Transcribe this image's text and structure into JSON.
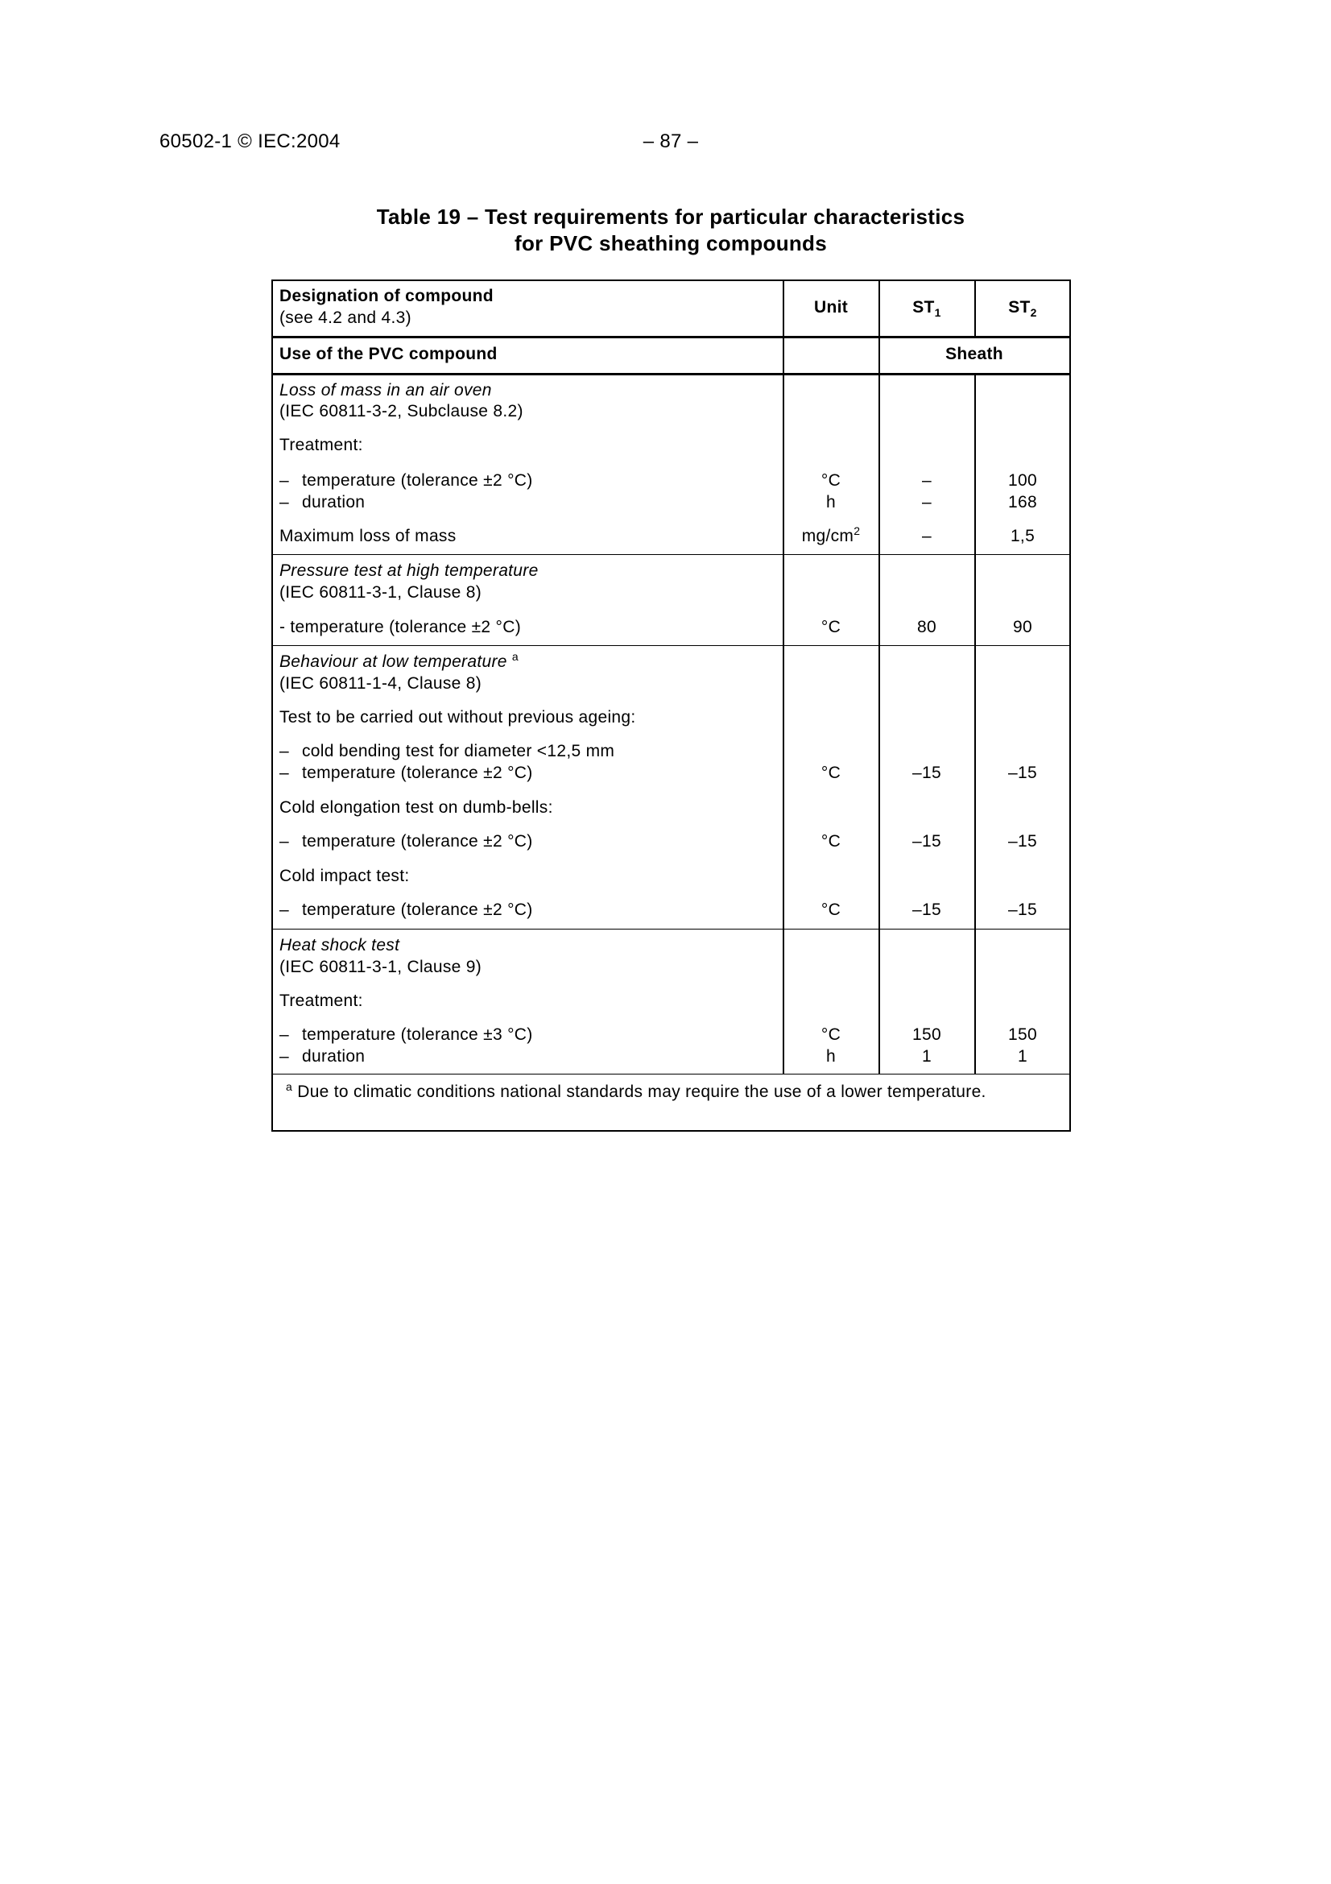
{
  "header": {
    "doc_id": "60502-1 © IEC:2004",
    "page": "– 87 –"
  },
  "title": {
    "line1": "Table 19 – Test requirements for particular characteristics",
    "line2": "for PVC  sheathing compounds"
  },
  "table": {
    "head": {
      "designation": "Designation of compound",
      "designation_note": "(see 4.2 and 4.3)",
      "unit": "Unit",
      "st1": "ST",
      "st1_sub": "1",
      "st2": "ST",
      "st2_sub": "2"
    },
    "use_row": {
      "label": "Use of the PVC compound",
      "value": "Sheath"
    },
    "s1": {
      "title": "Loss of mass in an air oven",
      "ref": "(IEC 60811-3-2, Subclause 8.2)",
      "treatment": "Treatment:",
      "temp": "temperature (tolerance ±2 °C)",
      "duration": "duration",
      "max": "Maximum loss of mass",
      "u_temp": "°C",
      "u_dur": "h",
      "u_max": "mg/cm",
      "u_max_sup": "2",
      "st1_temp": "–",
      "st1_dur": "–",
      "st1_max": "–",
      "st2_temp": "100",
      "st2_dur": "168",
      "st2_max": "1,5"
    },
    "s2": {
      "title": "Pressure test at high temperature",
      "ref": "(IEC 60811-3-1, Clause 8)",
      "temp": "- temperature (tolerance ±2 °C)",
      "u": "°C",
      "st1": "80",
      "st2": "90"
    },
    "s3": {
      "title": "Behaviour at low temperature",
      "title_sup": "a",
      "ref": "(IEC 60811-1-4, Clause 8)",
      "intro": "Test to be carried out without previous ageing:",
      "bend": "cold bending test for diameter <12,5 mm",
      "temp1": "temperature (tolerance ±2 °C)",
      "elong": "Cold elongation test on dumb-bells:",
      "temp2": "temperature (tolerance ±2 °C)",
      "impact": "Cold impact test:",
      "temp3": "temperature (tolerance ±2 °C)",
      "u": "°C",
      "st1": "–15",
      "st2": "–15"
    },
    "s4": {
      "title": "Heat shock test",
      "ref": "(IEC 60811-3-1, Clause 9)",
      "treatment": "Treatment:",
      "temp": "temperature (tolerance ±3 °C)",
      "duration": "duration",
      "u_temp": "°C",
      "u_dur": "h",
      "st1_temp": "150",
      "st1_dur": "1",
      "st2_temp": "150",
      "st2_dur": "1"
    },
    "dash": "–",
    "footnote": {
      "mark": "a",
      "text": "Due to climatic conditions national standards may require the use of a lower temperature."
    }
  }
}
